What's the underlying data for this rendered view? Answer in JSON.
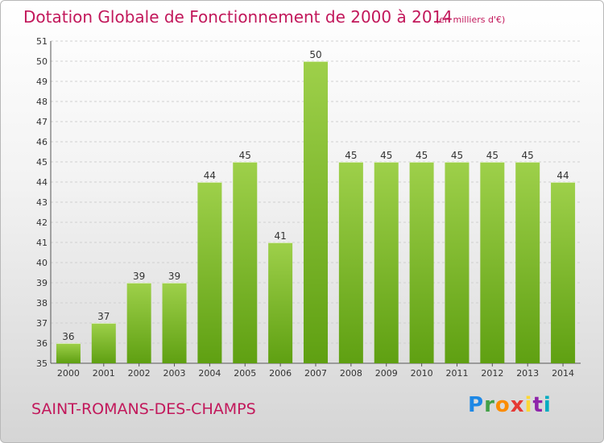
{
  "header": {
    "title": "Dotation Globale de Fonctionnement de 2000 à 2014",
    "unit": "(en milliers d'€)"
  },
  "commune": "SAINT-ROMANS-DES-CHAMPS",
  "logo": {
    "text": "Proxiti"
  },
  "colors": {
    "title": "#c2185b",
    "bar_light": "#9ed04a",
    "bar_dark": "#5fa012"
  },
  "chart_data": {
    "type": "bar",
    "title": "Dotation Globale de Fonctionnement de 2000 à 2014",
    "xlabel": "",
    "ylabel": "",
    "categories": [
      "2000",
      "2001",
      "2002",
      "2003",
      "2004",
      "2005",
      "2006",
      "2007",
      "2008",
      "2009",
      "2010",
      "2011",
      "2012",
      "2013",
      "2014"
    ],
    "values": [
      36,
      37,
      39,
      39,
      44,
      45,
      41,
      50,
      45,
      45,
      45,
      45,
      45,
      45,
      44
    ],
    "ylim": [
      35,
      51
    ],
    "yticks": [
      35,
      36,
      37,
      38,
      39,
      40,
      41,
      42,
      43,
      44,
      45,
      46,
      47,
      48,
      49,
      50,
      51
    ],
    "grid": true
  }
}
